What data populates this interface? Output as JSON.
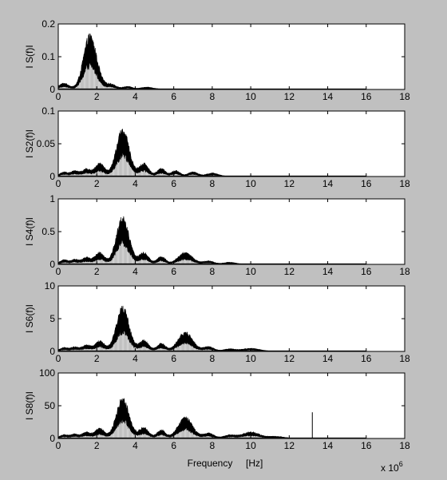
{
  "figure": {
    "background": "#c0c0c0",
    "plot_background": "#ffffff",
    "trace_color": "#000000",
    "xlabel": "Frequency     [Hz]",
    "exponent_base": "x 10",
    "exponent_power": "6"
  },
  "chart_data": [
    {
      "type": "area",
      "ylabel": "I S(f)I",
      "xlim": [
        0,
        18
      ],
      "ylim": [
        0,
        0.2
      ],
      "xticks": [
        "0",
        "2",
        "4",
        "6",
        "8",
        "10",
        "12",
        "14",
        "16",
        "18"
      ],
      "yticks": [
        "0",
        "0.1",
        "0.2"
      ],
      "peaks": [
        {
          "center": 0.3,
          "width": 0.25,
          "height": 0.018
        },
        {
          "center": 1.55,
          "width": 0.3,
          "height": 0.08
        },
        {
          "center": 1.75,
          "width": 0.35,
          "height": 0.1
        },
        {
          "center": 2.75,
          "width": 0.25,
          "height": 0.015
        },
        {
          "center": 3.6,
          "width": 0.25,
          "height": 0.008
        },
        {
          "center": 4.6,
          "width": 0.3,
          "height": 0.006
        }
      ],
      "spikes": []
    },
    {
      "type": "area",
      "ylabel": "I S2(f)I",
      "xlim": [
        0,
        18
      ],
      "ylim": [
        0,
        0.1
      ],
      "xticks": [
        "0",
        "2",
        "4",
        "6",
        "8",
        "10",
        "12",
        "14",
        "16",
        "18"
      ],
      "yticks": [
        "0",
        "0.05",
        "0.1"
      ],
      "peaks": [
        {
          "center": 0.3,
          "width": 0.2,
          "height": 0.006
        },
        {
          "center": 0.85,
          "width": 0.2,
          "height": 0.008
        },
        {
          "center": 1.45,
          "width": 0.22,
          "height": 0.011
        },
        {
          "center": 2.15,
          "width": 0.25,
          "height": 0.02
        },
        {
          "center": 3.35,
          "width": 0.33,
          "height": 0.075
        },
        {
          "center": 4.45,
          "width": 0.25,
          "height": 0.02
        },
        {
          "center": 5.35,
          "width": 0.22,
          "height": 0.012
        },
        {
          "center": 6.1,
          "width": 0.22,
          "height": 0.009
        },
        {
          "center": 7.0,
          "width": 0.25,
          "height": 0.007
        },
        {
          "center": 8.0,
          "width": 0.3,
          "height": 0.005
        }
      ],
      "spikes": []
    },
    {
      "type": "area",
      "ylabel": "I S4(f)I",
      "xlim": [
        0,
        18
      ],
      "ylim": [
        0,
        1
      ],
      "xticks": [
        "0",
        "2",
        "4",
        "6",
        "8",
        "10",
        "12",
        "14",
        "16",
        "18"
      ],
      "yticks": [
        "0",
        "0.5",
        "1"
      ],
      "peaks": [
        {
          "center": 0.3,
          "width": 0.2,
          "height": 0.06
        },
        {
          "center": 0.85,
          "width": 0.2,
          "height": 0.07
        },
        {
          "center": 1.45,
          "width": 0.22,
          "height": 0.1
        },
        {
          "center": 2.15,
          "width": 0.25,
          "height": 0.18
        },
        {
          "center": 3.35,
          "width": 0.33,
          "height": 0.75
        },
        {
          "center": 4.45,
          "width": 0.25,
          "height": 0.18
        },
        {
          "center": 5.35,
          "width": 0.22,
          "height": 0.12
        },
        {
          "center": 6.6,
          "width": 0.38,
          "height": 0.18
        },
        {
          "center": 7.8,
          "width": 0.28,
          "height": 0.05
        },
        {
          "center": 8.9,
          "width": 0.3,
          "height": 0.03
        }
      ],
      "spikes": []
    },
    {
      "type": "area",
      "ylabel": "I S6(f)I",
      "xlim": [
        0,
        18
      ],
      "ylim": [
        0,
        10
      ],
      "xticks": [
        "0",
        "2",
        "4",
        "6",
        "8",
        "10",
        "12",
        "14",
        "16",
        "18"
      ],
      "yticks": [
        "0",
        "5",
        "10"
      ],
      "peaks": [
        {
          "center": 0.3,
          "width": 0.2,
          "height": 0.5
        },
        {
          "center": 0.85,
          "width": 0.2,
          "height": 0.6
        },
        {
          "center": 1.45,
          "width": 0.22,
          "height": 0.9
        },
        {
          "center": 2.15,
          "width": 0.25,
          "height": 1.6
        },
        {
          "center": 3.35,
          "width": 0.33,
          "height": 7.0
        },
        {
          "center": 4.45,
          "width": 0.25,
          "height": 1.7
        },
        {
          "center": 5.35,
          "width": 0.22,
          "height": 1.2
        },
        {
          "center": 6.6,
          "width": 0.38,
          "height": 3.0
        },
        {
          "center": 7.8,
          "width": 0.28,
          "height": 0.7
        },
        {
          "center": 8.9,
          "width": 0.3,
          "height": 0.35
        },
        {
          "center": 10.0,
          "width": 0.45,
          "height": 0.45
        }
      ],
      "spikes": []
    },
    {
      "type": "area",
      "ylabel": "I S8(f)I",
      "xlim": [
        0,
        18
      ],
      "ylim": [
        0,
        100
      ],
      "xticks": [
        "0",
        "2",
        "4",
        "6",
        "8",
        "10",
        "12",
        "14",
        "16",
        "18"
      ],
      "yticks": [
        "0",
        "50",
        "100"
      ],
      "peaks": [
        {
          "center": 0.3,
          "width": 0.2,
          "height": 5
        },
        {
          "center": 0.85,
          "width": 0.2,
          "height": 6
        },
        {
          "center": 1.45,
          "width": 0.22,
          "height": 9
        },
        {
          "center": 2.15,
          "width": 0.25,
          "height": 15
        },
        {
          "center": 3.35,
          "width": 0.33,
          "height": 65
        },
        {
          "center": 4.45,
          "width": 0.25,
          "height": 17
        },
        {
          "center": 5.35,
          "width": 0.22,
          "height": 13
        },
        {
          "center": 6.6,
          "width": 0.38,
          "height": 33
        },
        {
          "center": 7.8,
          "width": 0.28,
          "height": 8
        },
        {
          "center": 8.9,
          "width": 0.3,
          "height": 5
        },
        {
          "center": 10.0,
          "width": 0.45,
          "height": 10
        },
        {
          "center": 11.3,
          "width": 0.4,
          "height": 3
        }
      ],
      "spikes": [
        {
          "x": 13.2,
          "y": 40
        }
      ]
    }
  ]
}
